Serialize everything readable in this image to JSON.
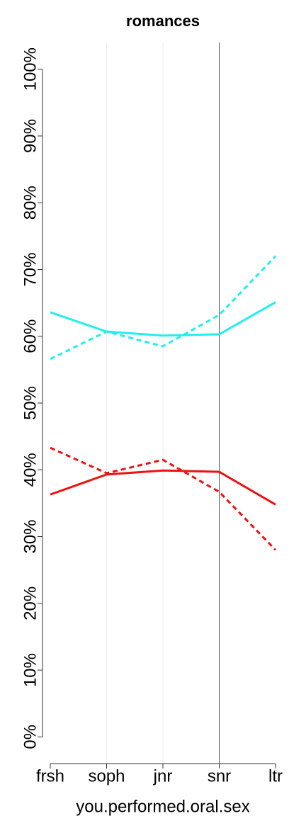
{
  "chart_data": {
    "type": "line",
    "title": "romances",
    "x_label": "you.performed.oral.sex",
    "categories": [
      "frsh",
      "soph",
      "jnr",
      "snr",
      "ltr"
    ],
    "series": [
      {
        "color": "#22eeee",
        "dashed": false,
        "values": [
          63.6,
          60.7,
          60.1,
          60.3,
          65.1
        ]
      },
      {
        "color": "#22eeee",
        "dashed": true,
        "values": [
          56.6,
          60.7,
          58.5,
          63.2,
          72.0
        ]
      },
      {
        "color": "#ee1111",
        "dashed": false,
        "values": [
          36.3,
          39.3,
          39.9,
          39.7,
          34.8
        ]
      },
      {
        "color": "#ee1111",
        "dashed": true,
        "values": [
          43.3,
          39.5,
          41.5,
          36.7,
          28.0
        ]
      }
    ],
    "ylim": [
      -4,
      104
    ],
    "yticks": [
      {
        "value": 0,
        "label": "0%"
      },
      {
        "value": 10,
        "label": "10%"
      },
      {
        "value": 20,
        "label": "20%"
      },
      {
        "value": 30,
        "label": "30%"
      },
      {
        "value": 40,
        "label": "40%"
      },
      {
        "value": 50,
        "label": "50%"
      },
      {
        "value": 60,
        "label": "60%"
      },
      {
        "value": 70,
        "label": "70%"
      },
      {
        "value": 80,
        "label": "80%"
      },
      {
        "value": 90,
        "label": "90%"
      },
      {
        "value": 100,
        "label": "100%"
      }
    ],
    "grid": true,
    "highlight_index": 3
  }
}
